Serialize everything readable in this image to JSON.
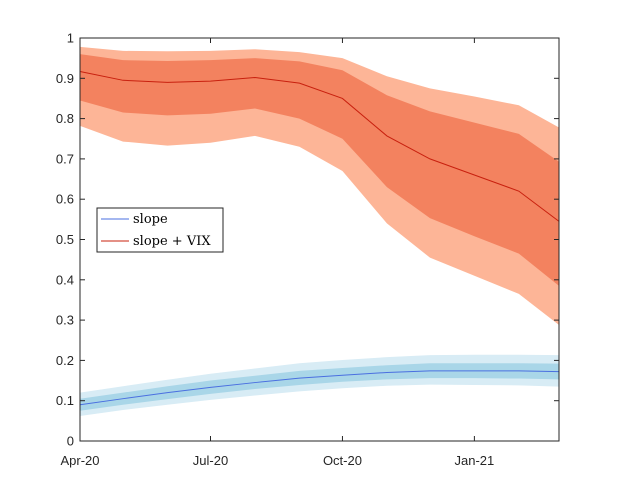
{
  "chart_data": {
    "type": "line",
    "title": "",
    "xlabel": "",
    "ylabel": "",
    "x": [
      "2020-04-01",
      "2020-05-01",
      "2020-06-01",
      "2020-07-01",
      "2020-08-01",
      "2020-09-01",
      "2020-10-01",
      "2020-11-01",
      "2020-12-01",
      "2021-01-01",
      "2021-02-01",
      "2021-03-01"
    ],
    "xlim": [
      "2020-04-01",
      "2021-03-01"
    ],
    "xticks": [
      {
        "label": "Apr-20",
        "value": "2020-04-01"
      },
      {
        "label": "Jul-20",
        "value": "2020-07-01"
      },
      {
        "label": "Oct-20",
        "value": "2020-10-01"
      },
      {
        "label": "Jan-21",
        "value": "2021-01-01"
      }
    ],
    "ylim": [
      0,
      1
    ],
    "yticks": [
      {
        "label": "0",
        "value": 0
      },
      {
        "label": "0.1",
        "value": 0.1
      },
      {
        "label": "0.2",
        "value": 0.2
      },
      {
        "label": "0.3",
        "value": 0.3
      },
      {
        "label": "0.4",
        "value": 0.4
      },
      {
        "label": "0.5",
        "value": 0.5
      },
      {
        "label": "0.6",
        "value": 0.6
      },
      {
        "label": "0.7",
        "value": 0.7
      },
      {
        "label": "0.8",
        "value": 0.8
      },
      {
        "label": "0.9",
        "value": 0.9
      },
      {
        "label": "1",
        "value": 1
      }
    ],
    "grid": false,
    "legend_position": "middle-left",
    "series": [
      {
        "name": "slope",
        "line_color": "#4a6fe0",
        "inner_band_color": "#a9d6e8",
        "outer_band_color": "#d8ecf5",
        "values": [
          0.09,
          0.105,
          0.12,
          0.133,
          0.145,
          0.156,
          0.163,
          0.17,
          0.174,
          0.174,
          0.174,
          0.172
        ],
        "inner_lower": [
          0.075,
          0.09,
          0.104,
          0.117,
          0.129,
          0.139,
          0.147,
          0.153,
          0.156,
          0.156,
          0.155,
          0.153
        ],
        "inner_upper": [
          0.105,
          0.12,
          0.136,
          0.15,
          0.162,
          0.174,
          0.181,
          0.188,
          0.193,
          0.193,
          0.193,
          0.192
        ],
        "outer_lower": [
          0.062,
          0.077,
          0.09,
          0.102,
          0.113,
          0.123,
          0.131,
          0.137,
          0.14,
          0.139,
          0.138,
          0.135
        ],
        "outer_upper": [
          0.12,
          0.136,
          0.152,
          0.167,
          0.18,
          0.193,
          0.201,
          0.208,
          0.213,
          0.214,
          0.214,
          0.213
        ]
      },
      {
        "name": "slope + VIX",
        "line_color": "#c8200e",
        "inner_band_color": "#f3825f",
        "outer_band_color": "#fdb597",
        "values": [
          0.917,
          0.895,
          0.89,
          0.893,
          0.902,
          0.888,
          0.85,
          0.757,
          0.7,
          0.66,
          0.62,
          0.545
        ],
        "inner_lower": [
          0.845,
          0.815,
          0.808,
          0.812,
          0.825,
          0.8,
          0.75,
          0.63,
          0.553,
          0.508,
          0.465,
          0.385
        ],
        "inner_upper": [
          0.96,
          0.945,
          0.943,
          0.945,
          0.95,
          0.942,
          0.92,
          0.858,
          0.818,
          0.79,
          0.762,
          0.693
        ],
        "outer_lower": [
          0.782,
          0.743,
          0.733,
          0.74,
          0.757,
          0.73,
          0.67,
          0.54,
          0.455,
          0.41,
          0.365,
          0.288
        ],
        "outer_upper": [
          0.978,
          0.968,
          0.967,
          0.968,
          0.972,
          0.965,
          0.95,
          0.905,
          0.875,
          0.855,
          0.833,
          0.778
        ]
      }
    ]
  }
}
